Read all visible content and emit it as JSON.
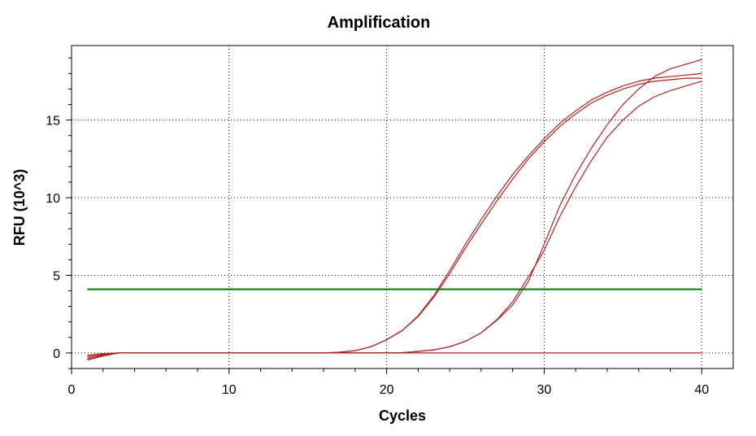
{
  "chart_data": {
    "type": "line",
    "title": "Amplification",
    "xlabel": "Cycles",
    "ylabel": "RFU (10^3)",
    "xlim": [
      0,
      42
    ],
    "ylim": [
      -1,
      19.8
    ],
    "xticks": [
      0,
      10,
      20,
      30,
      40
    ],
    "yticks": [
      0,
      5,
      10,
      15
    ],
    "grid": true,
    "colors": {
      "curves": "#b22222",
      "threshold": "#007000",
      "grid": "#000000"
    },
    "threshold": {
      "x": [
        1,
        40
      ],
      "y": 4.1
    },
    "series": [
      {
        "x": [
          1,
          2,
          3,
          4,
          6,
          8,
          10,
          12,
          14,
          16,
          17,
          18,
          19,
          20,
          21,
          22,
          23,
          24,
          25,
          26,
          27,
          28,
          29,
          30,
          31,
          32,
          33,
          34,
          35,
          36,
          37,
          38,
          39,
          40
        ],
        "y": [
          -0.3,
          -0.1,
          0,
          0,
          0,
          0,
          0,
          0,
          0,
          0,
          0.05,
          0.15,
          0.4,
          0.85,
          1.45,
          2.35,
          3.6,
          5.1,
          6.75,
          8.3,
          9.8,
          11.2,
          12.5,
          13.6,
          14.6,
          15.4,
          16.1,
          16.6,
          17.0,
          17.3,
          17.5,
          17.6,
          17.7,
          17.7
        ]
      },
      {
        "x": [
          1,
          2,
          3,
          4,
          6,
          8,
          10,
          12,
          14,
          16,
          17,
          18,
          19,
          20,
          21,
          22,
          23,
          24,
          25,
          26,
          27,
          28,
          29,
          30,
          31,
          32,
          33,
          34,
          35,
          36,
          37,
          38,
          39,
          40
        ],
        "y": [
          -0.2,
          -0.05,
          0,
          0,
          0,
          0,
          0,
          0,
          0,
          0,
          0.05,
          0.15,
          0.4,
          0.85,
          1.45,
          2.4,
          3.7,
          5.3,
          7.0,
          8.6,
          10.1,
          11.5,
          12.7,
          13.8,
          14.8,
          15.6,
          16.3,
          16.8,
          17.2,
          17.5,
          17.7,
          17.8,
          17.9,
          18.0
        ]
      },
      {
        "x": [
          1,
          2,
          3,
          4,
          6,
          8,
          10,
          12,
          14,
          16,
          18,
          20,
          21,
          22,
          23,
          24,
          25,
          26,
          27,
          28,
          29,
          30,
          31,
          32,
          33,
          34,
          35,
          36,
          37,
          38,
          39,
          40
        ],
        "y": [
          -0.4,
          -0.15,
          0,
          0,
          0,
          0,
          0,
          0,
          0,
          0,
          0,
          0,
          0.02,
          0.1,
          0.2,
          0.4,
          0.75,
          1.3,
          2.1,
          3.1,
          4.6,
          7.0,
          9.5,
          11.5,
          13.2,
          14.7,
          16.0,
          17.0,
          17.8,
          18.3,
          18.6,
          18.9
        ]
      },
      {
        "x": [
          1,
          2,
          3,
          4,
          6,
          8,
          10,
          12,
          14,
          16,
          18,
          20,
          21,
          22,
          23,
          24,
          25,
          26,
          27,
          28,
          29,
          30,
          31,
          32,
          33,
          34,
          35,
          36,
          37,
          38,
          39,
          40
        ],
        "y": [
          -0.45,
          -0.2,
          0,
          0,
          0,
          0,
          0,
          0,
          0,
          0,
          0,
          0,
          0.02,
          0.1,
          0.2,
          0.4,
          0.75,
          1.3,
          2.15,
          3.3,
          4.9,
          6.6,
          8.8,
          10.7,
          12.4,
          13.9,
          15.0,
          15.9,
          16.5,
          16.9,
          17.2,
          17.5
        ]
      },
      {
        "x": [
          1,
          2,
          3,
          4,
          5,
          10,
          15,
          20,
          25,
          30,
          35,
          40
        ],
        "y": [
          -0.15,
          -0.05,
          0,
          0,
          0,
          0,
          0,
          0,
          0,
          0,
          0,
          0
        ]
      }
    ]
  }
}
